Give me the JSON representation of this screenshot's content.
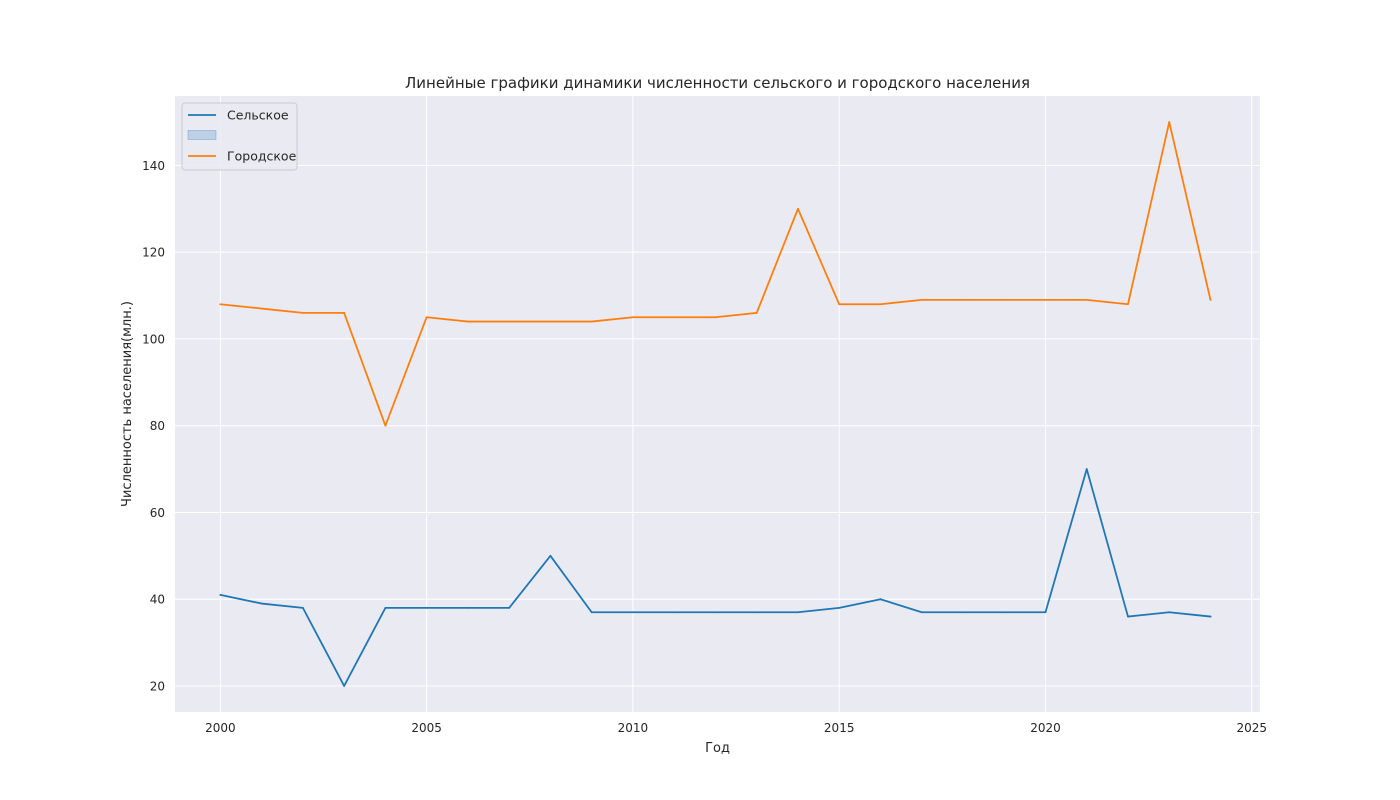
{
  "chart_data": {
    "type": "line",
    "title": "Линейные графики динамики численности сельского и городского населения",
    "xlabel": "Год",
    "ylabel": "Численность населения(млн.)",
    "x": [
      2000,
      2001,
      2002,
      2003,
      2004,
      2005,
      2006,
      2007,
      2008,
      2009,
      2010,
      2011,
      2012,
      2013,
      2014,
      2015,
      2016,
      2017,
      2018,
      2019,
      2020,
      2021,
      2022,
      2023,
      2024
    ],
    "series": [
      {
        "name": "Сельское",
        "color": "#1f77b4",
        "values": [
          41,
          39,
          38,
          20,
          38,
          38,
          38,
          38,
          50,
          37,
          37,
          37,
          37,
          37,
          37,
          38,
          40,
          37,
          37,
          37,
          37,
          70,
          36,
          37,
          36
        ]
      },
      {
        "name": "Городское",
        "color": "#ff7f0e",
        "values": [
          108,
          107,
          106,
          106,
          80,
          105,
          104,
          104,
          104,
          104,
          105,
          105,
          105,
          106,
          130,
          108,
          108,
          109,
          109,
          109,
          109,
          109,
          108,
          150,
          109
        ]
      }
    ],
    "legend_entries": [
      {
        "label": "Сельское",
        "kind": "line",
        "color": "#1f77b4"
      },
      {
        "label": "",
        "kind": "patch",
        "color": "#1f77b4"
      },
      {
        "label": "Городское",
        "kind": "line",
        "color": "#ff7f0e"
      }
    ],
    "xlim": [
      1998.9,
      2025.2
    ],
    "ylim": [
      14,
      156
    ],
    "xticks": [
      2000,
      2005,
      2010,
      2015,
      2020,
      2025
    ],
    "yticks": [
      20,
      40,
      60,
      80,
      100,
      120,
      140
    ],
    "grid": true,
    "legend_position": "upper left",
    "background_color": "#eaeaf2",
    "grid_color": "#ffffff"
  }
}
